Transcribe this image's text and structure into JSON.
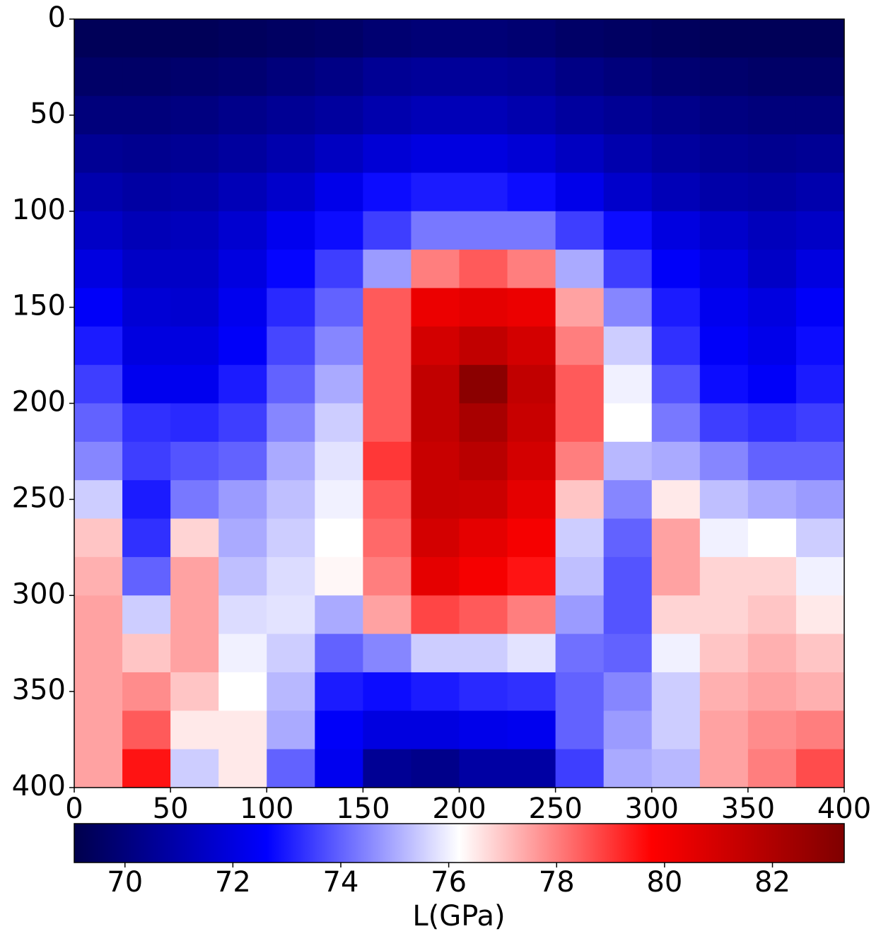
{
  "chart_data": {
    "type": "heatmap",
    "xlim": [
      0,
      400
    ],
    "xticks": [
      0,
      50,
      100,
      150,
      200,
      250,
      300,
      350,
      400
    ],
    "ylim": [
      400,
      0
    ],
    "yticks": [
      0,
      50,
      100,
      150,
      200,
      250,
      300,
      350,
      400
    ],
    "colormap": [
      "#00004c",
      "#0000ff",
      "#ffffff",
      "#ff0000",
      "#7f0000"
    ],
    "clim": [
      69.06,
      83.33
    ],
    "cticks": [
      70,
      72,
      74,
      76,
      78,
      80,
      82
    ],
    "colorbar_label": "L(GPa)",
    "values": [
      [
        69.3,
        69.3,
        69.3,
        69.4,
        69.5,
        69.6,
        69.8,
        69.9,
        69.9,
        69.8,
        69.6,
        69.5,
        69.4,
        69.3,
        69.3,
        69.3
      ],
      [
        69.6,
        69.6,
        69.7,
        69.8,
        70.0,
        70.2,
        70.5,
        70.6,
        70.6,
        70.5,
        70.2,
        70.0,
        69.8,
        69.7,
        69.6,
        69.6
      ],
      [
        70.0,
        70.0,
        70.1,
        70.3,
        70.5,
        70.7,
        71.0,
        71.2,
        71.2,
        71.0,
        70.7,
        70.5,
        70.3,
        70.1,
        70.0,
        70.0
      ],
      [
        70.5,
        70.4,
        70.5,
        70.7,
        71.0,
        71.4,
        71.8,
        72.0,
        72.0,
        71.8,
        71.4,
        71.0,
        70.7,
        70.5,
        70.4,
        70.5
      ],
      [
        71.0,
        70.8,
        70.9,
        71.2,
        71.6,
        72.2,
        72.8,
        73.0,
        73.0,
        72.8,
        72.2,
        71.6,
        71.2,
        70.9,
        70.8,
        71.0
      ],
      [
        71.5,
        71.2,
        71.3,
        71.7,
        72.3,
        72.8,
        73.5,
        74.3,
        74.3,
        74.3,
        73.5,
        72.8,
        72.0,
        71.6,
        71.3,
        71.5
      ],
      [
        72.0,
        71.5,
        71.5,
        72.0,
        72.7,
        73.5,
        74.8,
        78.0,
        78.5,
        78.0,
        75.0,
        73.5,
        72.5,
        72.0,
        71.5,
        72.0
      ],
      [
        72.5,
        71.8,
        71.7,
        72.3,
        73.2,
        74.0,
        78.5,
        80.3,
        80.5,
        80.3,
        77.5,
        74.5,
        73.0,
        72.3,
        72.0,
        72.5
      ],
      [
        73.0,
        72.0,
        72.0,
        72.5,
        73.6,
        74.5,
        78.5,
        81.0,
        81.5,
        81.0,
        78.0,
        75.5,
        73.3,
        72.5,
        72.2,
        72.8
      ],
      [
        73.5,
        72.3,
        72.3,
        73.0,
        74.0,
        75.0,
        78.5,
        81.5,
        83.0,
        81.5,
        78.5,
        76.0,
        73.8,
        72.8,
        72.5,
        73.0
      ],
      [
        74.0,
        73.3,
        73.2,
        73.5,
        74.5,
        75.5,
        78.5,
        81.5,
        82.2,
        81.3,
        78.5,
        76.2,
        74.3,
        73.5,
        73.3,
        73.5
      ],
      [
        74.5,
        73.5,
        73.8,
        74.0,
        75.0,
        75.8,
        79.0,
        81.3,
        81.7,
        81.0,
        78.0,
        75.2,
        75.0,
        74.5,
        74.0,
        74.0
      ],
      [
        75.5,
        73.0,
        74.3,
        74.8,
        75.3,
        76.0,
        78.5,
        81.3,
        81.2,
        80.5,
        77.0,
        74.5,
        76.5,
        75.3,
        75.0,
        74.8
      ],
      [
        77.0,
        73.3,
        76.8,
        75.0,
        75.5,
        76.2,
        78.3,
        81.0,
        80.5,
        80.0,
        75.5,
        74.0,
        77.5,
        76.0,
        76.2,
        75.5
      ],
      [
        77.3,
        74.0,
        77.5,
        75.3,
        75.7,
        76.3,
        78.0,
        80.5,
        80.0,
        79.5,
        75.3,
        73.8,
        77.5,
        76.8,
        76.8,
        76.0
      ],
      [
        77.5,
        75.5,
        77.5,
        75.7,
        75.8,
        75.0,
        77.5,
        78.8,
        78.5,
        78.0,
        74.8,
        73.8,
        76.8,
        76.8,
        77.0,
        76.5
      ],
      [
        77.5,
        77.0,
        77.5,
        76.0,
        75.5,
        74.0,
        74.5,
        75.5,
        75.5,
        75.8,
        74.2,
        74.0,
        76.0,
        77.0,
        77.3,
        77.0
      ],
      [
        77.5,
        77.8,
        77.0,
        76.2,
        75.2,
        73.0,
        72.8,
        73.0,
        73.2,
        73.3,
        74.0,
        74.5,
        75.5,
        77.3,
        77.5,
        77.3
      ],
      [
        77.5,
        78.5,
        76.5,
        76.5,
        75.0,
        72.5,
        72.0,
        72.0,
        72.2,
        72.3,
        74.0,
        74.8,
        75.5,
        77.5,
        77.8,
        78.0
      ],
      [
        77.5,
        79.5,
        75.5,
        76.5,
        74.0,
        72.3,
        70.5,
        70.3,
        70.8,
        70.8,
        73.5,
        75.0,
        75.2,
        77.5,
        78.0,
        78.7
      ]
    ]
  }
}
